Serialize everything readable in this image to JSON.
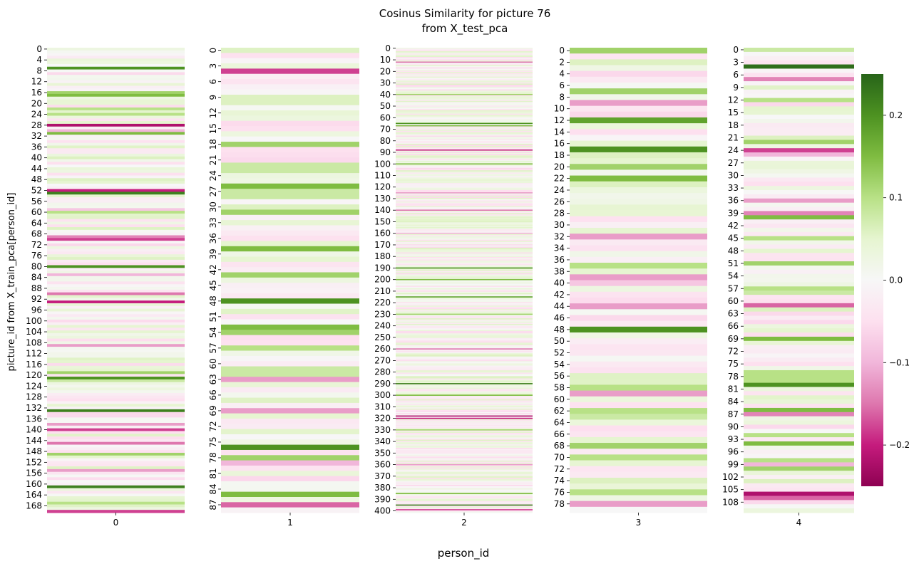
{
  "chart_data": {
    "type": "heatmap",
    "title": "Cosinus Similarity for picture 76",
    "subtitle": "from X_test_pca",
    "xlabel": "person_id",
    "ylabel": "picture_id from X_train_pca[person_id]",
    "colormap": "PiYG",
    "vmin": -0.25,
    "vmax": 0.25,
    "colorbar_ticks": [
      -0.2,
      -0.1,
      0.0,
      0.1,
      0.2
    ],
    "colorbar_tick_labels": [
      "−0.2",
      "−0.1",
      "0.0",
      "0.1",
      "0.2"
    ],
    "panels": [
      {
        "x_label": "0",
        "n_rows": 171,
        "tick_step": 4,
        "tick_labels": [
          "0",
          "4",
          "8",
          "12",
          "16",
          "20",
          "24",
          "28",
          "32",
          "36",
          "40",
          "44",
          "48",
          "52",
          "56",
          "60",
          "64",
          "68",
          "72",
          "76",
          "80",
          "84",
          "88",
          "92",
          "96",
          "100",
          "104",
          "108",
          "112",
          "116",
          "120",
          "124",
          "128",
          "132",
          "136",
          "140",
          "144",
          "148",
          "152",
          "156",
          "160",
          "164",
          "168"
        ],
        "highlights": {
          "7": 0.2,
          "16": 0.12,
          "17": 0.15,
          "22": 0.1,
          "24": 0.1,
          "28": -0.22,
          "30": -0.1,
          "31": 0.15,
          "40": 0.06,
          "52": -0.2,
          "53": 0.22,
          "59": -0.08,
          "60": 0.1,
          "69": -0.14,
          "70": -0.18,
          "80": 0.2,
          "83": -0.1,
          "90": -0.15,
          "93": -0.2,
          "109": -0.12,
          "119": 0.12,
          "121": 0.2,
          "122": 0.08,
          "133": 0.22,
          "138": -0.12,
          "140": -0.18,
          "145": -0.15,
          "149": 0.12,
          "155": -0.12,
          "161": 0.22,
          "167": 0.1,
          "170": -0.18
        }
      },
      {
        "x_label": "1",
        "n_rows": 89,
        "tick_step": 3,
        "tick_labels": [
          "0",
          "3",
          "6",
          "9",
          "12",
          "15",
          "18",
          "21",
          "24",
          "27",
          "30",
          "33",
          "36",
          "39",
          "42",
          "45",
          "48",
          "51",
          "54",
          "57",
          "60",
          "63",
          "66",
          "69",
          "72",
          "75",
          "78",
          "81",
          "84",
          "87"
        ],
        "highlights": {
          "4": -0.18,
          "9": 0.06,
          "10": 0.06,
          "18": 0.12,
          "22": 0.08,
          "23": 0.08,
          "26": 0.15,
          "27": 0.08,
          "28": 0.08,
          "30": 0.06,
          "31": 0.12,
          "38": 0.15,
          "43": 0.12,
          "48": 0.2,
          "53": 0.15,
          "54": 0.12,
          "57": 0.1,
          "61": 0.08,
          "62": 0.08,
          "63": -0.12,
          "69": -0.12,
          "76": 0.2,
          "78": 0.12,
          "79": -0.1,
          "82": -0.06,
          "85": 0.15,
          "87": -0.16
        }
      },
      {
        "x_label": "2",
        "n_rows": 402,
        "tick_step": 10,
        "tick_labels": [
          "0",
          "10",
          "20",
          "30",
          "40",
          "50",
          "60",
          "70",
          "80",
          "90",
          "100",
          "110",
          "120",
          "130",
          "140",
          "150",
          "160",
          "170",
          "180",
          "190",
          "200",
          "210",
          "220",
          "230",
          "240",
          "250",
          "260",
          "270",
          "280",
          "290",
          "300",
          "310",
          "320",
          "330",
          "340",
          "350",
          "360",
          "370",
          "380",
          "390",
          "400"
        ],
        "highlights": {
          "12": -0.15,
          "40": 0.12,
          "65": 0.2,
          "67": 0.15,
          "88": -0.2,
          "100": 0.15,
          "125": -0.12,
          "140": -0.15,
          "160": -0.1,
          "190": 0.2,
          "200": 0.15,
          "215": 0.18,
          "230": 0.12,
          "260": -0.15,
          "290": 0.22,
          "300": 0.15,
          "318": -0.22,
          "320": -0.2,
          "330": 0.12,
          "360": -0.12,
          "385": 0.15,
          "395": 0.22,
          "399": -0.18
        }
      },
      {
        "x_label": "3",
        "n_rows": 80,
        "tick_step": 2,
        "tick_labels": [
          "0",
          "2",
          "4",
          "6",
          "8",
          "10",
          "12",
          "14",
          "16",
          "18",
          "20",
          "22",
          "24",
          "26",
          "28",
          "30",
          "32",
          "34",
          "36",
          "38",
          "40",
          "42",
          "44",
          "46",
          "48",
          "50",
          "52",
          "54",
          "56",
          "58",
          "60",
          "62",
          "64",
          "66",
          "68",
          "70",
          "72",
          "74",
          "76",
          "78"
        ],
        "highlights": {
          "0": 0.12,
          "4": -0.06,
          "7": 0.12,
          "9": -0.12,
          "11": -0.06,
          "12": 0.18,
          "17": 0.2,
          "18": 0.06,
          "20": 0.12,
          "22": 0.15,
          "23": 0.06,
          "32": -0.12,
          "37": 0.1,
          "39": -0.12,
          "40": -0.08,
          "44": -0.12,
          "48": 0.2,
          "58": 0.1,
          "59": -0.12,
          "62": 0.1,
          "63": 0.08,
          "66": -0.04,
          "68": 0.12,
          "70": 0.1,
          "72": -0.04,
          "74": 0.06,
          "76": 0.1,
          "78": -0.12
        }
      },
      {
        "x_label": "4",
        "n_rows": 111,
        "tick_step": 3,
        "tick_labels": [
          "0",
          "3",
          "6",
          "9",
          "12",
          "15",
          "18",
          "21",
          "24",
          "27",
          "30",
          "33",
          "36",
          "39",
          "42",
          "45",
          "48",
          "51",
          "54",
          "57",
          "60",
          "63",
          "66",
          "69",
          "72",
          "75",
          "78",
          "81",
          "84",
          "87",
          "90",
          "93",
          "96",
          "99",
          "102",
          "105",
          "108"
        ],
        "highlights": {
          "0": 0.08,
          "4": 0.24,
          "7": -0.14,
          "12": 0.1,
          "13": -0.06,
          "21": 0.06,
          "22": 0.12,
          "24": -0.18,
          "25": -0.1,
          "36": -0.12,
          "39": -0.14,
          "40": 0.15,
          "45": 0.1,
          "51": 0.12,
          "57": 0.1,
          "58": 0.08,
          "61": -0.16,
          "62": 0.06,
          "69": 0.15,
          "77": 0.1,
          "78": 0.1,
          "79": 0.1,
          "80": 0.2,
          "86": 0.15,
          "87": -0.14,
          "92": 0.1,
          "94": 0.15,
          "98": 0.1,
          "99": -0.1,
          "100": 0.12,
          "106": -0.22,
          "107": -0.16
        }
      }
    ]
  }
}
